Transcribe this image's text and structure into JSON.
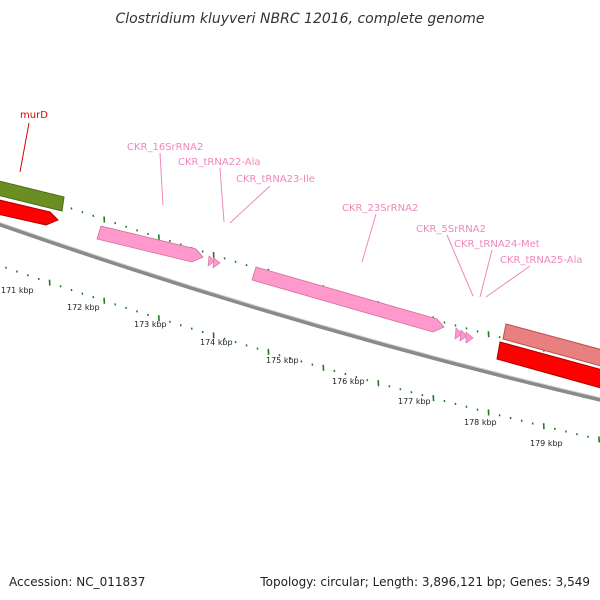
{
  "title": "Clostridium kluyveri NBRC 12016, complete genome",
  "footer": {
    "accession": "Accession: NC_011837",
    "summary": "Topology: circular; Length: 3,896,121 bp; Genes: 3,549"
  },
  "colors": {
    "backbone": "#8a8a8a",
    "tick": "#1f7a1f",
    "rrna": "#ff99cc",
    "trna": "#ff99cc",
    "cds_forward": "#6b8e23",
    "cds_reverse": "#ff0000",
    "cds_light": "#e88080",
    "murD_label": "#dd0000",
    "rna_label": "#ee88bb"
  },
  "scale": {
    "unit": "kbp",
    "tick_labels": [
      "171 kbp",
      "172 kbp",
      "173 kbp",
      "174 kbp",
      "175 kbp",
      "176 kbp",
      "177 kbp",
      "178 kbp",
      "179 kbp"
    ]
  },
  "features": [
    {
      "name": "murD",
      "type": "CDS",
      "label_color": "murD"
    },
    {
      "name": "CKR_16SrRNA2",
      "type": "rRNA"
    },
    {
      "name": "CKR_tRNA22-Ala",
      "type": "tRNA"
    },
    {
      "name": "CKR_tRNA23-Ile",
      "type": "tRNA"
    },
    {
      "name": "CKR_23SrRNA2",
      "type": "rRNA"
    },
    {
      "name": "CKR_5SrRNA2",
      "type": "rRNA"
    },
    {
      "name": "CKR_tRNA24-Met",
      "type": "tRNA"
    },
    {
      "name": "CKR_tRNA25-Ala",
      "type": "tRNA"
    }
  ]
}
